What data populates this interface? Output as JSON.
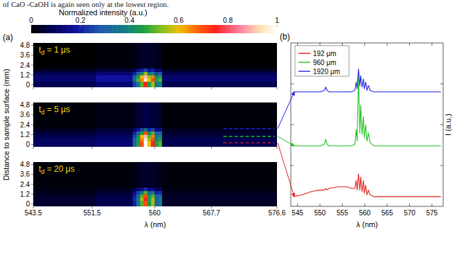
{
  "page_text": "of CaO -CaOH is again seen only at the lowest region.",
  "chart_data": [
    {
      "type": "heatmap",
      "panel_label": "(a)",
      "xlabel": "λ (nm)",
      "ylabel": "Distance to sample surface (mm)",
      "xlim": [
        543.5,
        576.6
      ],
      "xticks": [
        543.5,
        551.5,
        560,
        567.7,
        576.6
      ],
      "ylim": [
        -0.3,
        5.1
      ],
      "yticks": [
        0,
        1.2,
        2.4,
        3.6,
        4.8
      ],
      "x_edges": [
        543.5,
        552,
        557,
        557.5,
        558,
        558.5,
        559,
        559.5,
        560,
        560.5,
        561,
        576.6
      ],
      "y_edges": [
        -0.3,
        0.4,
        0.8,
        1.2,
        1.6,
        2.0,
        5.1
      ],
      "colorbar": {
        "label": "Normalized intensity (a.u.)",
        "range": [
          0,
          1
        ],
        "ticks": [
          0,
          0.2,
          0.4,
          0.6,
          0.8,
          1
        ]
      },
      "panels": [
        {
          "label": [
            "t",
            "d",
            " = 1 μs"
          ],
          "cells": [
            [
              0.08,
              0.12,
              0.25,
              0.35,
              0.5,
              0.75,
              0.45,
              0.55,
              0.35,
              0.4,
              0.08
            ],
            [
              0.12,
              0.18,
              0.35,
              0.5,
              0.65,
              0.95,
              0.6,
              0.7,
              0.45,
              0.5,
              0.12
            ],
            [
              0.12,
              0.18,
              0.3,
              0.45,
              0.6,
              0.9,
              0.55,
              0.65,
              0.4,
              0.45,
              0.12
            ],
            [
              0.08,
              0.12,
              0.2,
              0.3,
              0.4,
              0.55,
              0.35,
              0.4,
              0.25,
              0.28,
              0.08
            ],
            [
              0.04,
              0.06,
              0.1,
              0.15,
              0.2,
              0.25,
              0.18,
              0.2,
              0.12,
              0.14,
              0.04
            ],
            [
              0,
              0.01,
              0.02,
              0.03,
              0.04,
              0.05,
              0.04,
              0.04,
              0.03,
              0.03,
              0
            ]
          ]
        },
        {
          "label": [
            "t",
            "d",
            " = 5 μs"
          ],
          "cells": [
            [
              0.1,
              0.12,
              0.3,
              0.45,
              0.7,
              1.0,
              0.6,
              0.75,
              0.45,
              0.5,
              0.08
            ],
            [
              0.1,
              0.12,
              0.3,
              0.45,
              0.65,
              0.95,
              0.55,
              0.7,
              0.4,
              0.45,
              0.08
            ],
            [
              0.08,
              0.1,
              0.25,
              0.4,
              0.6,
              0.9,
              0.5,
              0.65,
              0.35,
              0.4,
              0.06
            ],
            [
              0.06,
              0.08,
              0.2,
              0.3,
              0.45,
              0.7,
              0.4,
              0.5,
              0.28,
              0.3,
              0.05
            ],
            [
              0.03,
              0.05,
              0.12,
              0.18,
              0.25,
              0.35,
              0.22,
              0.25,
              0.15,
              0.16,
              0.03
            ],
            [
              0.01,
              0.02,
              0.04,
              0.05,
              0.06,
              0.08,
              0.06,
              0.06,
              0.05,
              0.05,
              0.01
            ]
          ],
          "lines": [
            {
              "y": 1.92,
              "color": "#2020e8"
            },
            {
              "y": 0.96,
              "color": "#20c020"
            },
            {
              "y": 0.192,
              "color": "#e02020"
            }
          ]
        },
        {
          "label": [
            "t",
            "d",
            " = 20 μs"
          ],
          "cells": [
            [
              0.05,
              0.08,
              0.2,
              0.35,
              0.5,
              0.7,
              0.45,
              0.55,
              0.3,
              0.35,
              0.04
            ],
            [
              0.05,
              0.08,
              0.22,
              0.35,
              0.55,
              0.75,
              0.45,
              0.55,
              0.3,
              0.35,
              0.04
            ],
            [
              0.04,
              0.07,
              0.2,
              0.3,
              0.5,
              0.7,
              0.42,
              0.5,
              0.28,
              0.3,
              0.04
            ],
            [
              0.03,
              0.05,
              0.15,
              0.25,
              0.35,
              0.5,
              0.3,
              0.38,
              0.2,
              0.22,
              0.03
            ],
            [
              0.02,
              0.03,
              0.08,
              0.12,
              0.16,
              0.22,
              0.14,
              0.16,
              0.1,
              0.1,
              0.02
            ],
            [
              0.01,
              0.01,
              0.02,
              0.03,
              0.04,
              0.05,
              0.04,
              0.04,
              0.03,
              0.03,
              0.01
            ]
          ]
        }
      ]
    },
    {
      "type": "line",
      "panel_label": "(b)",
      "xlabel": "λ (nm)",
      "ylabel": "I (a.u.)",
      "xlim": [
        543.5,
        577.5
      ],
      "xticks": [
        545,
        550,
        555,
        560,
        565,
        570,
        575
      ],
      "ylim": [
        0,
        1
      ],
      "yticks": [
        0.25,
        0.5,
        0.75
      ],
      "tick_labels": "x",
      "legend": "top-left",
      "x": [
        544,
        546,
        548,
        550,
        551,
        551.3,
        551.6,
        552,
        554,
        556,
        557,
        557.8,
        558.1,
        558.3,
        558.6,
        558.9,
        559.1,
        559.4,
        559.7,
        559.9,
        560.2,
        560.5,
        560.8,
        561.2,
        562,
        564,
        566,
        570,
        577
      ],
      "series": [
        {
          "name": "192 μm",
          "color": "#e02020",
          "values": [
            0.06,
            0.07,
            0.09,
            0.1,
            0.1,
            0.11,
            0.1,
            0.11,
            0.12,
            0.12,
            0.11,
            0.11,
            0.16,
            0.1,
            0.2,
            0.1,
            0.18,
            0.09,
            0.16,
            0.08,
            0.13,
            0.07,
            0.1,
            0.07,
            0.06,
            0.06,
            0.06,
            0.06,
            0.06
          ]
        },
        {
          "name": "960 μm",
          "color": "#20c020",
          "values": [
            0.37,
            0.37,
            0.37,
            0.37,
            0.38,
            0.41,
            0.38,
            0.37,
            0.37,
            0.37,
            0.37,
            0.38,
            0.47,
            0.4,
            0.8,
            0.45,
            0.62,
            0.44,
            0.55,
            0.42,
            0.5,
            0.4,
            0.45,
            0.39,
            0.37,
            0.37,
            0.37,
            0.37,
            0.37
          ]
        },
        {
          "name": "1920 μm",
          "color": "#2020e8",
          "values": [
            0.7,
            0.7,
            0.7,
            0.7,
            0.71,
            0.73,
            0.71,
            0.7,
            0.7,
            0.7,
            0.7,
            0.71,
            0.76,
            0.72,
            0.84,
            0.74,
            0.8,
            0.73,
            0.78,
            0.72,
            0.76,
            0.71,
            0.74,
            0.71,
            0.7,
            0.7,
            0.7,
            0.7,
            0.7
          ]
        }
      ]
    }
  ]
}
